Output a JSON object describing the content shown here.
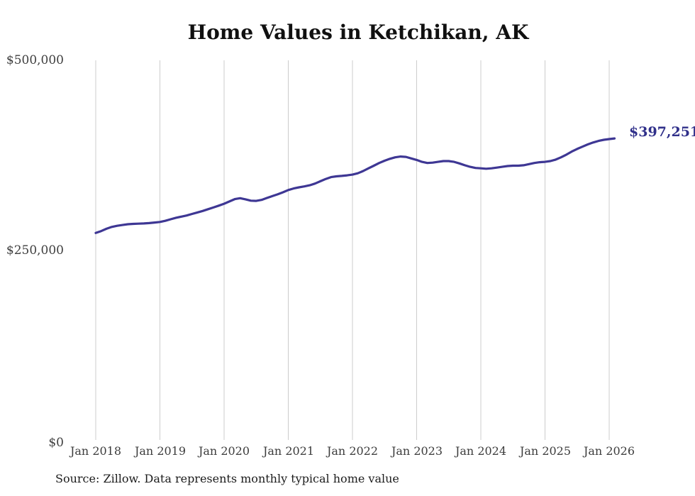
{
  "title": "Home Values in Ketchikan, AK",
  "source_note": "Source: Zillow. Data represents monthly typical home value",
  "colors": {
    "line": "#3e3794",
    "end_label": "#30308a",
    "gridline": "#cccccc",
    "title_text": "#101010",
    "axis_text": "#3f3f3f",
    "background": "#ffffff"
  },
  "chart_data": {
    "type": "line",
    "title": "Home Values in Ketchikan, AK",
    "xlabel": "",
    "ylabel": "",
    "ylim": [
      0,
      500000
    ],
    "grid": "vertical-only",
    "legend": "none",
    "frequency": "monthly",
    "start": "2018-01",
    "end": "2026-02",
    "x_ticks": [
      "Jan 2018",
      "Jan 2019",
      "Jan 2020",
      "Jan 2021",
      "Jan 2022",
      "Jan 2023",
      "Jan 2024",
      "Jan 2025",
      "Jan 2026"
    ],
    "y_ticks": [
      {
        "label": "$0",
        "value": 0
      },
      {
        "label": "$250,000",
        "value": 250000
      },
      {
        "label": "$500,000",
        "value": 500000
      }
    ],
    "series_name": "Typical home value",
    "values": [
      273000,
      275500,
      278500,
      281000,
      282500,
      283500,
      284500,
      285000,
      285250,
      285500,
      286000,
      286750,
      287500,
      289000,
      291000,
      293000,
      294500,
      296000,
      298000,
      300000,
      302000,
      304250,
      306500,
      309000,
      311500,
      314500,
      317500,
      318750,
      317250,
      315500,
      315250,
      316500,
      319000,
      321500,
      323750,
      326500,
      329500,
      331500,
      333000,
      334250,
      335750,
      338000,
      341000,
      344000,
      346500,
      347500,
      348000,
      348750,
      349750,
      351500,
      354500,
      358000,
      361500,
      365000,
      368000,
      370500,
      372500,
      373500,
      373000,
      371000,
      369000,
      366500,
      365000,
      365500,
      366500,
      367500,
      367500,
      366500,
      364500,
      362000,
      360000,
      358500,
      358000,
      357500,
      358000,
      359000,
      360000,
      361000,
      361500,
      361500,
      362000,
      363500,
      365000,
      366000,
      366500,
      367500,
      369500,
      372500,
      376000,
      380000,
      383500,
      386500,
      389500,
      392000,
      394000,
      395500,
      396500,
      397251
    ],
    "final_value": 397251,
    "annotation": "$397,251"
  }
}
